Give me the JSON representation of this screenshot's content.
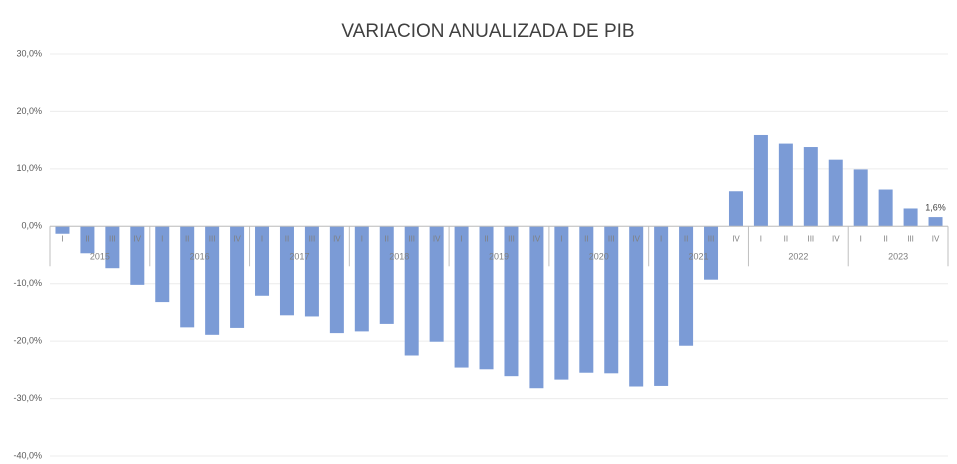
{
  "chart_data": {
    "type": "bar",
    "title": "VARIACION ANUALIZADA DE PIB",
    "categories": [
      "I",
      "II",
      "III",
      "IV",
      "I",
      "II",
      "III",
      "IV",
      "I",
      "II",
      "III",
      "IV",
      "I",
      "II",
      "III",
      "IV",
      "I",
      "II",
      "III",
      "IV",
      "I",
      "II",
      "III",
      "IV",
      "I",
      "II",
      "III",
      "IV",
      "I",
      "II",
      "III",
      "IV",
      "I",
      "II",
      "III",
      "IV"
    ],
    "years": [
      "2015",
      "2016",
      "2017",
      "2018",
      "2019",
      "2020",
      "2021",
      "2022",
      "2023"
    ],
    "values": [
      -1.3,
      -4.7,
      -7.3,
      -10.2,
      -13.2,
      -17.6,
      -18.9,
      -17.7,
      -12.1,
      -15.5,
      -15.7,
      -18.6,
      -18.3,
      -17.0,
      -22.5,
      -20.1,
      -24.6,
      -24.9,
      -26.1,
      -28.2,
      -26.7,
      -25.5,
      -25.6,
      -27.9,
      -27.8,
      -20.8,
      -9.3,
      6.1,
      15.9,
      14.4,
      13.8,
      11.6,
      9.9,
      6.4,
      3.1,
      1.6
    ],
    "value_labels": [
      null,
      null,
      null,
      null,
      null,
      null,
      null,
      null,
      null,
      null,
      null,
      null,
      null,
      null,
      null,
      null,
      null,
      null,
      null,
      null,
      null,
      null,
      null,
      null,
      null,
      null,
      null,
      null,
      null,
      null,
      null,
      null,
      null,
      null,
      null,
      "1,6%"
    ],
    "color": "#7b9bd6",
    "ylim": [
      -40,
      30
    ],
    "yticks": [
      {
        "value": -40,
        "label": "-40,0%"
      },
      {
        "value": -30,
        "label": "-30,0%"
      },
      {
        "value": -20,
        "label": "-20,0%"
      },
      {
        "value": -10,
        "label": "-10,0%"
      },
      {
        "value": 0,
        "label": "0,0%"
      },
      {
        "value": 10,
        "label": "10,0%"
      },
      {
        "value": 20,
        "label": "20,0%"
      },
      {
        "value": 30,
        "label": "30,0%"
      }
    ],
    "grid": true
  }
}
